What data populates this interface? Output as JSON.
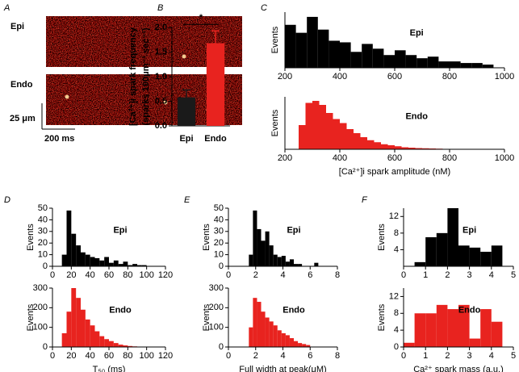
{
  "chart_data": [
    {
      "type": "image",
      "panel": "A",
      "labels": [
        "Epi",
        "Endo"
      ],
      "scale_labels": [
        "25 μm",
        "200 ms"
      ],
      "colors": [
        "#000000",
        "#e8231f"
      ]
    },
    {
      "type": "bar",
      "panel": "B",
      "ylabel": [
        "[Ca²⁺]i spark frequency",
        "(sparks 100μm⁻¹ sec⁻¹)"
      ],
      "categories": [
        "Epi",
        "Endo"
      ],
      "values": [
        0.58,
        1.68
      ],
      "errors": [
        0.15,
        0.25
      ],
      "colors": [
        "#1a1a1a",
        "#e8231f"
      ],
      "ylim": [
        0,
        2.0
      ],
      "yticks": [
        {
          "value": 0,
          "label": "0.0"
        },
        {
          "value": 0.5,
          "label": "0.5"
        },
        {
          "value": 1,
          "label": "1.0"
        },
        {
          "value": 1.5,
          "label": "1.5"
        },
        {
          "value": 2,
          "label": "2.0"
        }
      ],
      "annotation": "*"
    },
    {
      "type": "histogram",
      "panel": "C",
      "label": "Epi",
      "ylabel": "Events",
      "color": "#000000",
      "bins": [
        200,
        240,
        280,
        320,
        360,
        400,
        440,
        480,
        520,
        560,
        600,
        640,
        680,
        720,
        760,
        800,
        840,
        880,
        920,
        960
      ],
      "counts": [
        27,
        22,
        32,
        24,
        17,
        16,
        10,
        15,
        12,
        8,
        11,
        8,
        6,
        7,
        4,
        4,
        3,
        3,
        2
      ],
      "xlim": [
        200,
        1000
      ],
      "xticks": [
        200,
        400,
        600,
        800,
        1000
      ],
      "ylim": [
        0,
        35
      ],
      "yticks": []
    },
    {
      "type": "histogram",
      "label": "Endo",
      "ylabel": "Events",
      "xlabel": "[Ca²⁺]i spark amplitude (nM)",
      "color": "#e8231f",
      "bins": [
        250,
        275,
        300,
        325,
        350,
        375,
        400,
        425,
        450,
        475,
        500,
        525,
        550,
        575,
        600,
        625,
        650,
        675,
        700,
        725,
        750,
        775,
        800,
        825,
        850,
        875,
        900
      ],
      "counts": [
        120,
        230,
        240,
        220,
        180,
        150,
        130,
        100,
        80,
        60,
        45,
        35,
        25,
        20,
        15,
        10,
        8,
        6,
        5,
        4,
        3,
        2,
        2,
        1,
        1,
        1
      ],
      "xlim": [
        200,
        1000
      ],
      "xticks": [
        200,
        400,
        600,
        800,
        1000
      ],
      "ylim": [
        0,
        260
      ],
      "yticks": []
    },
    {
      "type": "histogram",
      "panel": "D",
      "label": "Epi",
      "ylabel": "Events",
      "color": "#000000",
      "bins": [
        10,
        15,
        20,
        25,
        30,
        35,
        40,
        45,
        50,
        55,
        60,
        65,
        70,
        75,
        80,
        85,
        90,
        95,
        100
      ],
      "counts": [
        10,
        48,
        28,
        18,
        12,
        10,
        8,
        7,
        5,
        8,
        3,
        5,
        2,
        4,
        1,
        2,
        1,
        1
      ],
      "xlim": [
        0,
        120
      ],
      "xticks": [
        0,
        20,
        40,
        60,
        80,
        100,
        120
      ],
      "ylim": [
        0,
        50
      ],
      "yticks": [
        0,
        10,
        20,
        30,
        40,
        50
      ]
    },
    {
      "type": "histogram",
      "label": "Endo",
      "ylabel": "Events",
      "xlabel": "T₅₀ (ms)",
      "color": "#e8231f",
      "bins": [
        10,
        15,
        20,
        25,
        30,
        35,
        40,
        45,
        50,
        55,
        60,
        65,
        70,
        75,
        80,
        85,
        90,
        95
      ],
      "counts": [
        70,
        180,
        300,
        250,
        190,
        140,
        110,
        80,
        55,
        40,
        30,
        20,
        12,
        8,
        5,
        3,
        2
      ],
      "xlim": [
        0,
        120
      ],
      "xticks": [
        0,
        20,
        40,
        60,
        80,
        100,
        120
      ],
      "ylim": [
        0,
        300
      ],
      "yticks": [
        0,
        100,
        200,
        300
      ]
    },
    {
      "type": "histogram",
      "panel": "E",
      "label": "Epi",
      "ylabel": "Events",
      "color": "#000000",
      "bins": [
        1.5,
        1.8,
        2.1,
        2.4,
        2.7,
        3.0,
        3.3,
        3.6,
        3.9,
        4.2,
        4.5,
        4.8,
        5.1,
        5.4,
        5.7,
        6.0,
        6.3,
        6.6,
        6.9
      ],
      "counts": [
        10,
        48,
        32,
        22,
        30,
        18,
        10,
        8,
        9,
        4,
        6,
        2,
        2,
        0,
        0,
        0,
        3,
        0,
        1
      ],
      "xlim": [
        0,
        8
      ],
      "xticks": [
        0,
        2,
        4,
        6,
        8
      ],
      "ylim": [
        0,
        50
      ],
      "yticks": [
        0,
        10,
        20,
        30,
        40,
        50
      ]
    },
    {
      "type": "histogram",
      "label": "Endo",
      "ylabel": "Events",
      "xlabel": "Full width at peak(μM)",
      "color": "#e8231f",
      "bins": [
        1.5,
        1.8,
        2.1,
        2.4,
        2.7,
        3.0,
        3.3,
        3.6,
        3.9,
        4.2,
        4.5,
        4.8,
        5.1,
        5.4,
        5.7,
        6.0
      ],
      "counts": [
        100,
        250,
        230,
        180,
        150,
        130,
        110,
        85,
        70,
        60,
        45,
        30,
        20,
        15,
        10
      ],
      "xlim": [
        0,
        8
      ],
      "xticks": [
        0,
        2,
        4,
        6,
        8
      ],
      "ylim": [
        0,
        300
      ],
      "yticks": [
        0,
        100,
        200,
        300
      ]
    },
    {
      "type": "histogram",
      "panel": "F",
      "label": "Epi",
      "ylabel": "Events",
      "color": "#000000",
      "bins": [
        0.5,
        1.0,
        1.5,
        2.0,
        2.5,
        3.0,
        3.5,
        4.0,
        4.5
      ],
      "counts": [
        1,
        7,
        8,
        14,
        5,
        4.5,
        3.5,
        5
      ],
      "xlim": [
        0,
        5
      ],
      "xticks": [
        0,
        1,
        2,
        3,
        4,
        5
      ],
      "ylim": [
        0,
        14
      ],
      "yticks": [
        4,
        8,
        12
      ]
    },
    {
      "type": "histogram",
      "label": "Endo",
      "ylabel": "Events",
      "xlabel": "Ca²⁺ spark mass (a.u.)",
      "color": "#e8231f",
      "bins": [
        0,
        0.5,
        1.0,
        1.5,
        2.0,
        2.5,
        3.0,
        3.5,
        4.0,
        4.5
      ],
      "counts": [
        1,
        8,
        8,
        10,
        9,
        10,
        2,
        9,
        6
      ],
      "xlim": [
        0,
        5
      ],
      "xticks": [
        0,
        1,
        2,
        3,
        4,
        5
      ],
      "ylim": [
        0,
        14
      ],
      "yticks": [
        0,
        4,
        8,
        12
      ]
    }
  ]
}
